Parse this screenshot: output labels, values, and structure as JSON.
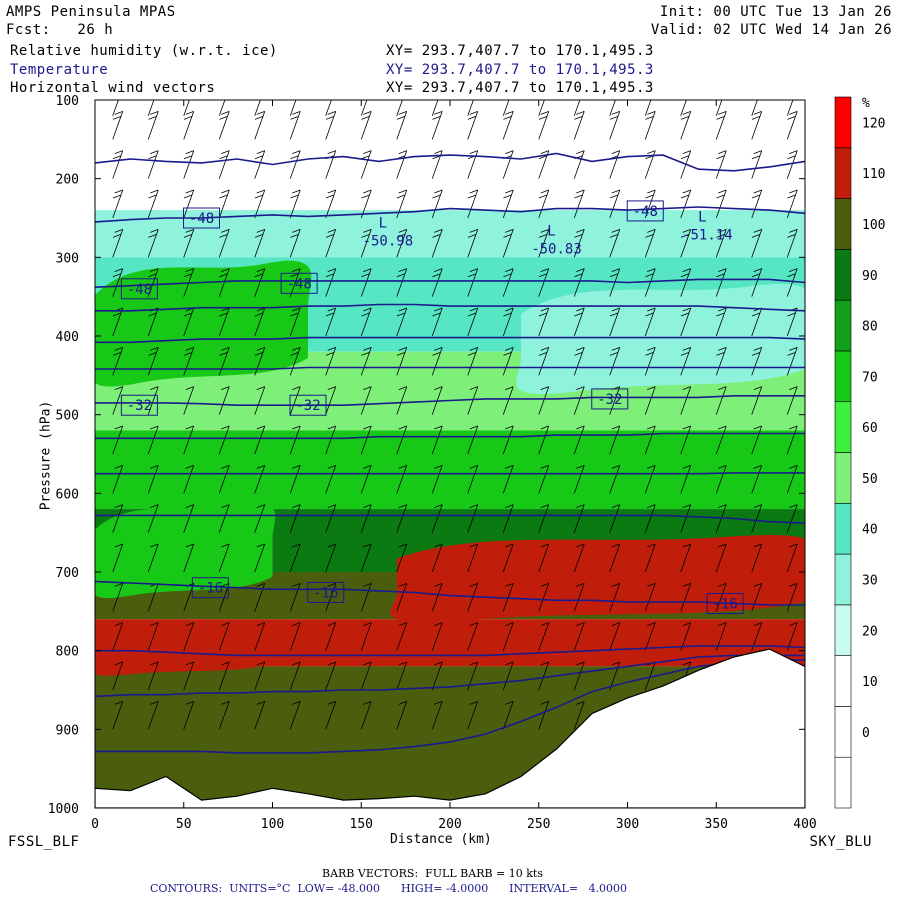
{
  "header": {
    "model": "AMPS Peninsula MPAS",
    "init": "Init: 00 UTC Tue 13 Jan 26",
    "fcst": "Fcst:   26 h",
    "valid": "Valid: 02 UTC Wed 14 Jan 26",
    "fields": [
      {
        "name": "Relative humidity (w.r.t. ice)",
        "xy": "XY= 293.7,407.7 to 170.1,495.3",
        "color": "#000000"
      },
      {
        "name": "Temperature",
        "xy": "XY= 293.7,407.7 to 170.1,495.3",
        "color": "#1a1a8c"
      },
      {
        "name": "Horizontal wind vectors",
        "xy": "XY= 293.7,407.7 to 170.1,495.3",
        "color": "#000000"
      }
    ]
  },
  "footer": {
    "left_station": "FSSL_BLF",
    "right_station": "SKY_BLU",
    "barb_note": "BARB VECTORS:  FULL BARB = 10 kts",
    "contours_note": "CONTOURS:  UNITS=°C  LOW= -48.000      HIGH= -4.0000      INTERVAL=   4.0000"
  },
  "chart_data": {
    "type": "heatmap",
    "xlabel": "Distance (km)",
    "ylabel": "Pressure (hPa)",
    "xlim": [
      0,
      400
    ],
    "ylim": [
      1000,
      100
    ],
    "x_ticks": [
      0,
      50,
      100,
      150,
      200,
      250,
      300,
      350,
      400
    ],
    "y_ticks": [
      100,
      200,
      300,
      400,
      500,
      600,
      700,
      800,
      900,
      1000
    ],
    "colorbar": {
      "unit": "%",
      "levels": [
        -10,
        0,
        10,
        20,
        30,
        40,
        50,
        60,
        70,
        80,
        90,
        100,
        110,
        120
      ],
      "labels": [
        "0",
        "10",
        "20",
        "30",
        "40",
        "50",
        "60",
        "70",
        "80",
        "90",
        "100",
        "110",
        "120"
      ],
      "colors": [
        "#ffffff",
        "#ffffff",
        "#ffffff",
        "#c8fcf0",
        "#8ef2dc",
        "#57e6c3",
        "#7ef07a",
        "#3df03d",
        "#17c817",
        "#11a01a",
        "#0b7a13",
        "#4a5e0e",
        "#c01e0a",
        "#ff0000"
      ]
    },
    "rh_bands": [
      {
        "p_top": 100,
        "p_bot": 240,
        "rh": 15
      },
      {
        "p_top": 240,
        "p_bot": 300,
        "rh": 35
      },
      {
        "p_top": 300,
        "p_bot": 420,
        "rh": 45
      },
      {
        "p_top": 420,
        "p_bot": 520,
        "rh": 55
      },
      {
        "p_top": 520,
        "p_bot": 620,
        "rh": 75
      },
      {
        "p_top": 620,
        "p_bot": 700,
        "rh": 90
      },
      {
        "p_top": 700,
        "p_bot": 760,
        "rh": 100
      },
      {
        "p_top": 760,
        "p_bot": 820,
        "rh": 112
      },
      {
        "p_top": 820,
        "p_bot": 1000,
        "rh": 100
      }
    ],
    "rh_features": [
      {
        "x0": 0,
        "x1": 120,
        "p_top": 300,
        "p_bot": 460,
        "rh": 70
      },
      {
        "x0": 0,
        "x1": 100,
        "p_top": 610,
        "p_bot": 730,
        "rh": 72
      },
      {
        "x0": 170,
        "x1": 400,
        "p_top": 650,
        "p_bot": 760,
        "rh": 115
      },
      {
        "x0": 240,
        "x1": 400,
        "p_top": 330,
        "p_bot": 470,
        "rh": 35
      },
      {
        "x0": 0,
        "x1": 100,
        "p_top": 760,
        "p_bot": 830,
        "rh": 112
      }
    ],
    "temperature_contours": [
      {
        "value": -44,
        "p": [
          180,
          175,
          178,
          180,
          175,
          182,
          175,
          172,
          178,
          172,
          170,
          172,
          175,
          168,
          178,
          172,
          170,
          188,
          190,
          185,
          178
        ]
      },
      {
        "value": -48,
        "p": [
          255,
          252,
          250,
          250,
          248,
          246,
          248,
          246,
          244,
          242,
          238,
          240,
          242,
          238,
          238,
          240,
          238,
          236,
          238,
          240,
          244
        ]
      },
      {
        "value": -48,
        "p": [
          338,
          336,
          334,
          332,
          330,
          330,
          330,
          330,
          330,
          330,
          330,
          330,
          330,
          330,
          330,
          332,
          330,
          328,
          328,
          328,
          332
        ]
      },
      {
        "value": -44,
        "p": [
          368,
          368,
          366,
          364,
          364,
          364,
          362,
          362,
          360,
          360,
          362,
          362,
          362,
          362,
          362,
          362,
          362,
          362,
          364,
          366,
          368
        ]
      },
      {
        "value": -40,
        "p": [
          408,
          408,
          406,
          404,
          404,
          404,
          402,
          402,
          402,
          402,
          402,
          402,
          402,
          402,
          402,
          402,
          402,
          402,
          402,
          402,
          404
        ]
      },
      {
        "value": -36,
        "p": [
          442,
          442,
          442,
          442,
          442,
          442,
          440,
          440,
          440,
          440,
          440,
          440,
          440,
          440,
          440,
          440,
          440,
          440,
          440,
          440,
          440
        ]
      },
      {
        "value": -32,
        "p": [
          485,
          485,
          485,
          486,
          488,
          488,
          488,
          488,
          486,
          484,
          482,
          480,
          480,
          480,
          478,
          478,
          478,
          478,
          476,
          476,
          476
        ]
      },
      {
        "value": -28,
        "p": [
          530,
          530,
          530,
          530,
          530,
          530,
          530,
          530,
          528,
          528,
          528,
          528,
          528,
          526,
          526,
          526,
          524,
          524,
          524,
          524,
          524
        ]
      },
      {
        "value": -24,
        "p": [
          575,
          575,
          575,
          575,
          575,
          575,
          575,
          575,
          575,
          575,
          575,
          575,
          575,
          575,
          575,
          575,
          575,
          575,
          574,
          574,
          574
        ]
      },
      {
        "value": -20,
        "p": [
          628,
          628,
          628,
          628,
          628,
          628,
          628,
          628,
          628,
          628,
          628,
          628,
          628,
          628,
          628,
          628,
          628,
          630,
          632,
          636,
          638
        ]
      },
      {
        "value": -16,
        "p": [
          712,
          714,
          716,
          718,
          720,
          722,
          722,
          722,
          724,
          726,
          730,
          732,
          734,
          736,
          736,
          738,
          738,
          738,
          740,
          742,
          742
        ]
      },
      {
        "value": -12,
        "p": [
          800,
          800,
          802,
          804,
          806,
          806,
          806,
          806,
          806,
          806,
          806,
          806,
          804,
          802,
          800,
          798,
          796,
          794,
          794,
          794,
          796
        ]
      },
      {
        "value": -8,
        "p": [
          858,
          856,
          856,
          854,
          854,
          852,
          852,
          850,
          850,
          848,
          846,
          842,
          838,
          832,
          826,
          820,
          814,
          808,
          806,
          806,
          806
        ]
      },
      {
        "value": -4,
        "p": [
          928,
          928,
          928,
          928,
          930,
          930,
          930,
          928,
          926,
          922,
          916,
          906,
          890,
          872,
          852,
          840,
          830,
          820,
          815,
          812,
          812
        ]
      }
    ],
    "contour_labels": [
      {
        "text": "-48",
        "x": 60,
        "p": 250
      },
      {
        "text": "-48",
        "x": 310,
        "p": 241
      },
      {
        "text": "-48",
        "x": 25,
        "p": 340
      },
      {
        "text": "-48",
        "x": 115,
        "p": 333
      },
      {
        "text": "-32",
        "x": 25,
        "p": 488
      },
      {
        "text": "-32",
        "x": 120,
        "p": 488
      },
      {
        "text": "-32",
        "x": 290,
        "p": 480
      },
      {
        "text": "-16",
        "x": 65,
        "p": 720
      },
      {
        "text": "-16",
        "x": 130,
        "p": 726
      },
      {
        "text": "-16",
        "x": 355,
        "p": 740
      }
    ],
    "lows": [
      {
        "symbol": "L",
        "value": "-50.98",
        "x": 165,
        "p": 280
      },
      {
        "symbol": "L",
        "value": "-50.83",
        "x": 260,
        "p": 290
      },
      {
        "symbol": "L",
        "value": "-51.14",
        "x": 345,
        "p": 272
      }
    ],
    "terrain_top_p": [
      975,
      978,
      960,
      990,
      985,
      975,
      982,
      990,
      988,
      985,
      990,
      982,
      960,
      925,
      880,
      860,
      845,
      825,
      808,
      798,
      820
    ],
    "barb_pressures": [
      120,
      150,
      200,
      250,
      300,
      350,
      400,
      450,
      500,
      550,
      600,
      650,
      700,
      750,
      800,
      850,
      900
    ],
    "barb_x": [
      10,
      30,
      50,
      70,
      90,
      110,
      130,
      150,
      170,
      190,
      210,
      230,
      250,
      270,
      290,
      310,
      330,
      350,
      370,
      390
    ]
  }
}
